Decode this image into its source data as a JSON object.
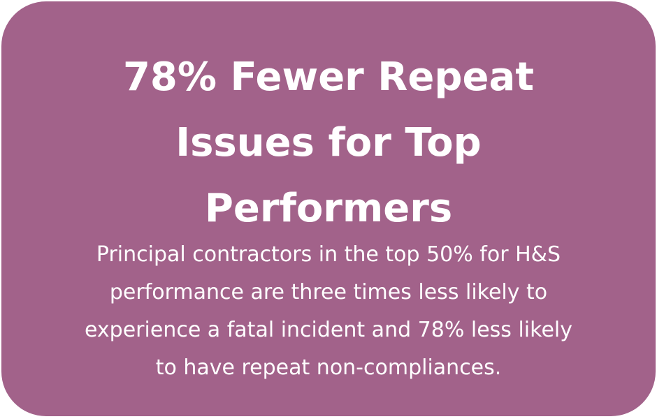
{
  "card": {
    "title_lines": [
      "78% Fewer Repeat",
      "Issues for Top",
      "Performers"
    ],
    "body_lines": [
      "Principal contractors in the top 50% for H&S",
      "performance are three times less likely to",
      "experience a fatal incident and 78% less likely",
      "to have repeat non-compliances."
    ]
  }
}
